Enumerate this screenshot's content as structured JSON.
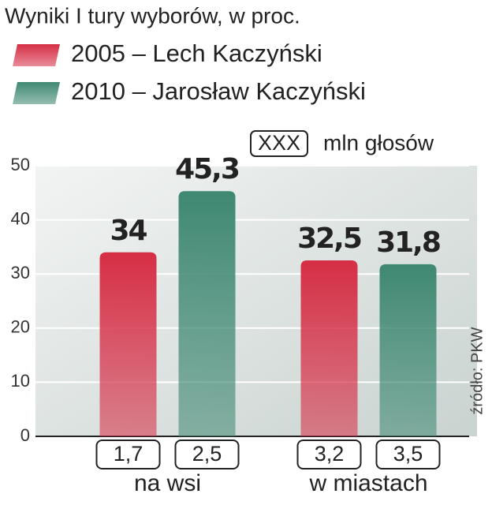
{
  "chart_data": {
    "type": "bar",
    "title": "Wyniki I tury wyborów, w proc.",
    "categories": [
      "na wsi",
      "w miastach"
    ],
    "series": [
      {
        "name": "2005 – Lech Kaczyński",
        "color": "#d62e45",
        "values": [
          34,
          32.5
        ],
        "value_labels": [
          "34",
          "32,5"
        ],
        "votes": [
          1.7,
          3.2
        ],
        "votes_labels": [
          "1,7",
          "3,2"
        ]
      },
      {
        "name": "2010 – Jarosław Kaczyński",
        "color": "#3f8872",
        "values": [
          45.3,
          31.8
        ],
        "value_labels": [
          "45,3",
          "31,8"
        ],
        "votes": [
          2.5,
          3.5
        ],
        "votes_labels": [
          "2,5",
          "3,5"
        ]
      }
    ],
    "votes_key": "XXX",
    "votes_unit": "mln głosów",
    "source": "źródło: PKW",
    "ylim": [
      0,
      50
    ],
    "yticks": [
      0,
      10,
      20,
      30,
      40,
      50
    ],
    "grid": true
  }
}
